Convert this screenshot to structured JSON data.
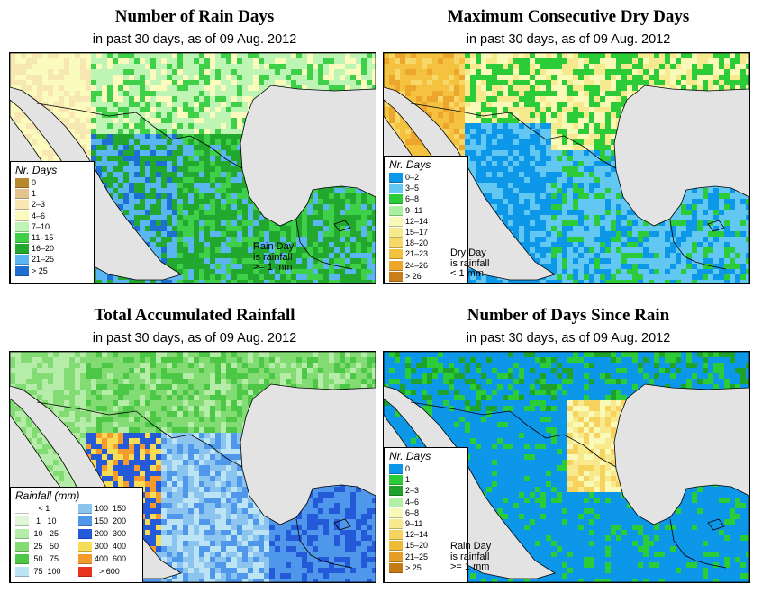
{
  "panels": [
    {
      "title": "Number of Rain Days",
      "subtitle": "in past 30 days, as of  09 Aug. 2012",
      "legend_title": "Nr. Days",
      "legend": [
        {
          "label": "0",
          "color": "#b8862b"
        },
        {
          "label": "1",
          "color": "#e4c38f"
        },
        {
          "label": "2–3",
          "color": "#f6e7b3"
        },
        {
          "label": "4–6",
          "color": "#fbfbbe"
        },
        {
          "label": "7–10",
          "color": "#bff5b4"
        },
        {
          "label": "11–15",
          "color": "#3fd04a"
        },
        {
          "label": "16–20",
          "color": "#22a82e"
        },
        {
          "label": "21–25",
          "color": "#5ab5f0"
        },
        {
          "label": "> 25",
          "color": "#1e6fd2"
        }
      ],
      "note": [
        "Rain Day",
        "is rainfall",
        ">= 1 mm"
      ]
    },
    {
      "title": "Maximum Consecutive Dry Days",
      "subtitle": "in past 30 days, as of  09 Aug. 2012",
      "legend_title": "Nr. Days",
      "legend": [
        {
          "label": "0–2",
          "color": "#0d97e8"
        },
        {
          "label": "3–5",
          "color": "#62c8f2"
        },
        {
          "label": "6–8",
          "color": "#2ccc38"
        },
        {
          "label": "9–11",
          "color": "#a9f0a0"
        },
        {
          "label": "12–14",
          "color": "#fafab8"
        },
        {
          "label": "15–17",
          "color": "#f7ea8e"
        },
        {
          "label": "18–20",
          "color": "#f6d767"
        },
        {
          "label": "21–23",
          "color": "#f4c23e"
        },
        {
          "label": "24–26",
          "color": "#eda62c"
        },
        {
          "label": "> 26",
          "color": "#c87f1a"
        }
      ],
      "note": [
        "Dry Day",
        "is rainfall",
        "< 1 mm"
      ]
    },
    {
      "title": "Total Accumulated Rainfall",
      "subtitle": "in past 30 days, as of  09 Aug. 2012",
      "legend_title": "Rainfall (mm)",
      "legend": [
        {
          "label": "   < 1",
          "color": "#ffffff"
        },
        {
          "label": "  1   10",
          "color": "#dff7d6"
        },
        {
          "label": " 10   25",
          "color": "#b5eda8"
        },
        {
          "label": " 25   50",
          "color": "#82dc73"
        },
        {
          "label": " 50   75",
          "color": "#4cc746"
        },
        {
          "label": " 75  100",
          "color": "#bde4f5"
        },
        {
          "label": "100  150",
          "color": "#8ac4ef"
        },
        {
          "label": "150  200",
          "color": "#4f97ea"
        },
        {
          "label": "200  300",
          "color": "#2459d8"
        },
        {
          "label": "300  400",
          "color": "#f8dc55"
        },
        {
          "label": "400  600",
          "color": "#f59a2c"
        },
        {
          "label": "  > 600",
          "color": "#e8341c"
        }
      ],
      "note": []
    },
    {
      "title": "Number of Days Since Rain",
      "subtitle": "in past 30 days, as of  09 Aug. 2012",
      "legend_title": "Nr. Days",
      "legend": [
        {
          "label": "0",
          "color": "#0d97e8"
        },
        {
          "label": "1",
          "color": "#2ccc38"
        },
        {
          "label": "2–3",
          "color": "#1fa22c"
        },
        {
          "label": "4–6",
          "color": "#b3f0a7"
        },
        {
          "label": "6–8",
          "color": "#fafab8"
        },
        {
          "label": "9–11",
          "color": "#f7e98c"
        },
        {
          "label": "12–14",
          "color": "#f6d35f"
        },
        {
          "label": "15–20",
          "color": "#f1bb3a"
        },
        {
          "label": "21–25",
          "color": "#e59e28"
        },
        {
          "label": "> 25",
          "color": "#c47b16"
        }
      ],
      "note": [
        "Rain Day",
        "is rainfall",
        ">= 1 mm"
      ]
    }
  ]
}
